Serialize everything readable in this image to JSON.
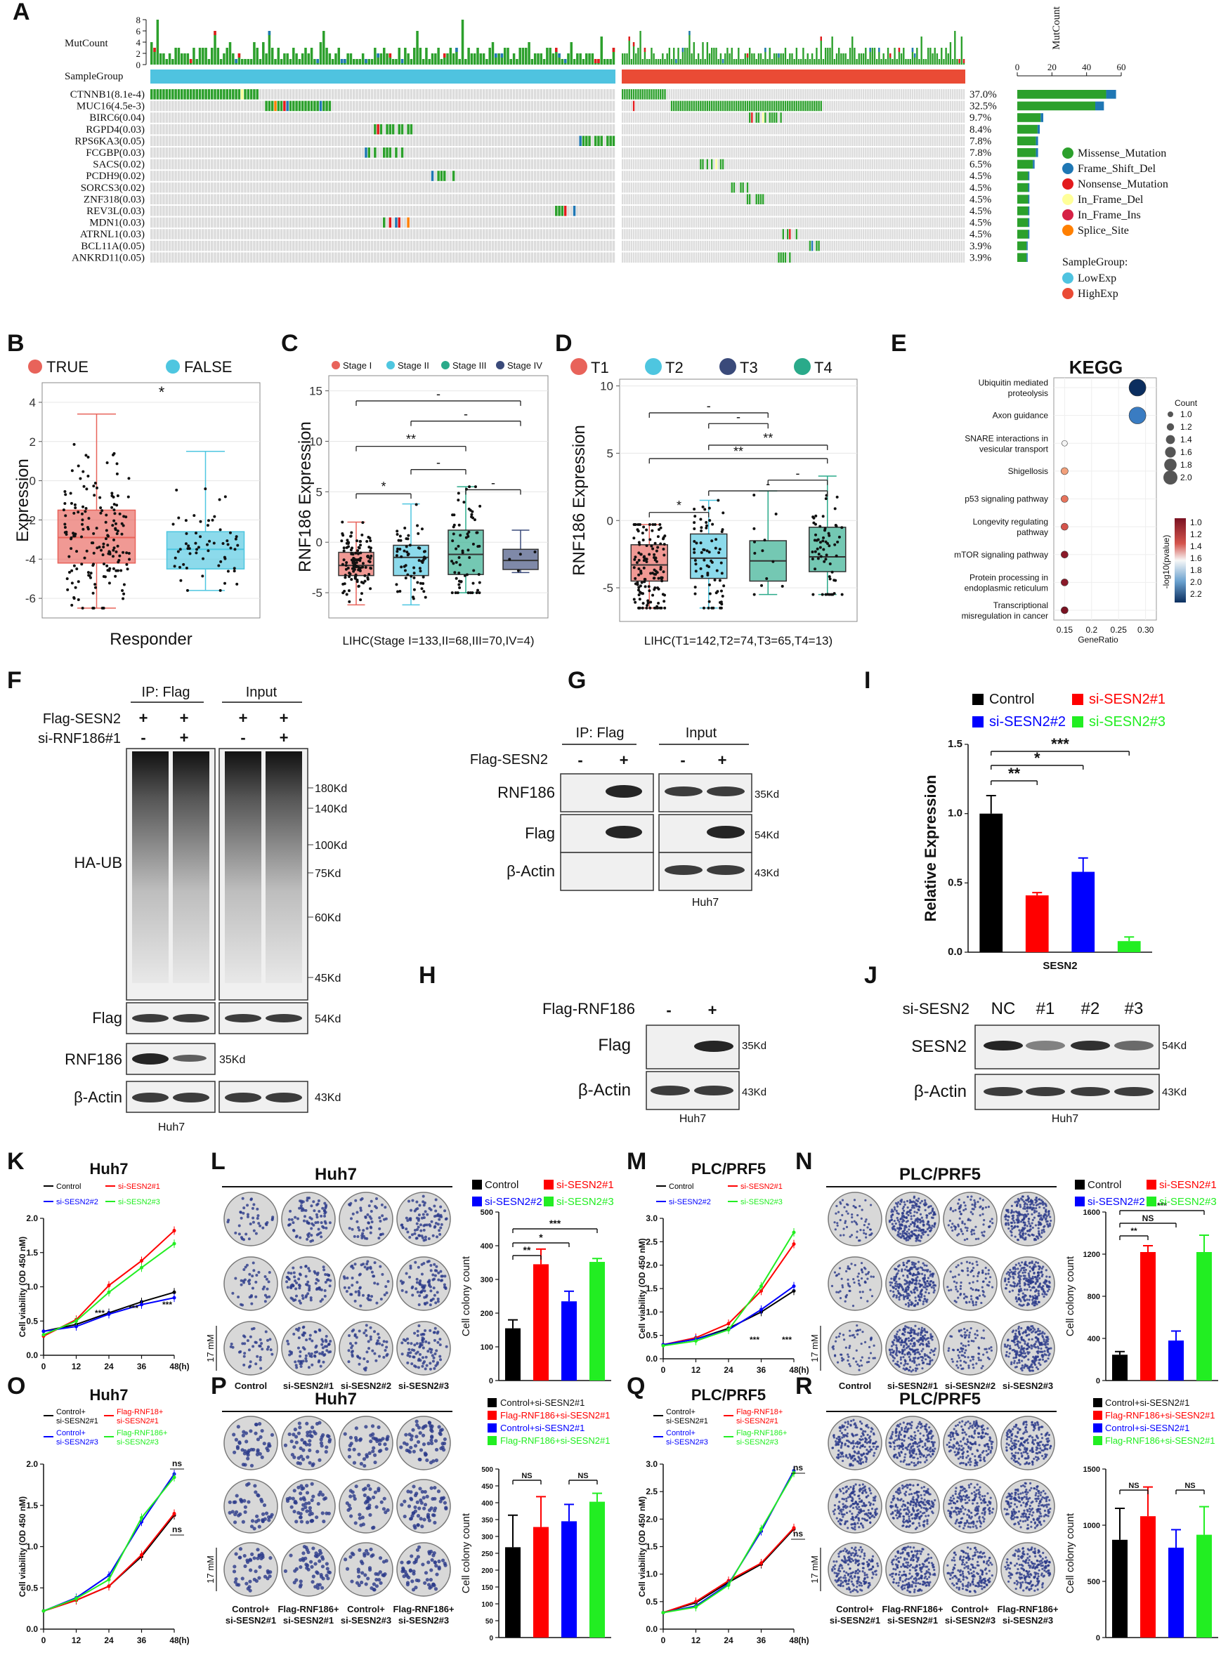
{
  "colors": {
    "missense": "#2ca02c",
    "frameshift": "#1f77b4",
    "nonsense": "#e31a1c",
    "inframe_del": "#ffff99",
    "inframe_ins": "#d62246",
    "splice": "#ff7f00",
    "lowexp": "#4fc3e0",
    "highexp": "#ea4b35",
    "gray_cell": "#dcdcdc",
    "control": "#000000",
    "si1": "#ff0000",
    "si2": "#0000ff",
    "si3": "#22ee22",
    "responder_true": "#e8635a",
    "responder_false": "#4ec6e0",
    "stage1": "#e8635a",
    "stage2": "#4ec6e0",
    "stage3": "#2aaa8a",
    "stage4": "#3a4a7a"
  },
  "panels": {
    "A": "A",
    "B": "B",
    "C": "C",
    "D": "D",
    "E": "E",
    "F": "F",
    "G": "G",
    "H": "H",
    "I": "I",
    "J": "J",
    "K": "K",
    "L": "L",
    "M": "M",
    "N": "N",
    "O": "O",
    "P": "P",
    "Q": "Q",
    "R": "R"
  },
  "panel_a": {
    "mutcount_label": "MutCount",
    "mutcount_ticks": [
      "8",
      "6",
      "4",
      "2",
      "0"
    ],
    "samplegroup_label": "SampleGroup",
    "side_axis_title": "MutCount",
    "side_axis_ticks": [
      "0",
      "20",
      "40",
      "60"
    ],
    "genes": [
      {
        "name": "CTNNB1(8.1e-4)",
        "pct": "37.0%",
        "count": 57
      },
      {
        "name": "MUC16(4.5e-3)",
        "pct": "32.5%",
        "count": 50
      },
      {
        "name": "BIRC6(0.04)",
        "pct": "9.7%",
        "count": 15
      },
      {
        "name": "RGPD4(0.03)",
        "pct": "8.4%",
        "count": 13
      },
      {
        "name": "RPS6KA3(0.05)",
        "pct": "7.8%",
        "count": 12
      },
      {
        "name": "FCGBP(0.03)",
        "pct": "7.8%",
        "count": 12
      },
      {
        "name": "SACS(0.02)",
        "pct": "6.5%",
        "count": 10
      },
      {
        "name": "PCDH9(0.02)",
        "pct": "4.5%",
        "count": 7
      },
      {
        "name": "SORCS3(0.02)",
        "pct": "4.5%",
        "count": 7
      },
      {
        "name": "ZNF318(0.03)",
        "pct": "4.5%",
        "count": 7
      },
      {
        "name": "REV3L(0.03)",
        "pct": "4.5%",
        "count": 7
      },
      {
        "name": "MDN1(0.03)",
        "pct": "4.5%",
        "count": 7
      },
      {
        "name": "ATRNL1(0.03)",
        "pct": "4.5%",
        "count": 7
      },
      {
        "name": "BCL11A(0.05)",
        "pct": "3.9%",
        "count": 6
      },
      {
        "name": "ANKRD11(0.05)",
        "pct": "3.9%",
        "count": 6
      }
    ],
    "legend": [
      {
        "label": "Missense_Mutation",
        "color": "#2ca02c"
      },
      {
        "label": "Frame_Shift_Del",
        "color": "#1f77b4"
      },
      {
        "label": "Nonsense_Mutation",
        "color": "#e31a1c"
      },
      {
        "label": "In_Frame_Del",
        "color": "#ffff99"
      },
      {
        "label": "In_Frame_Ins",
        "color": "#d62246"
      },
      {
        "label": "Splice_Site",
        "color": "#ff7f00"
      }
    ],
    "samplegroup_legend_title": "SampleGroup:",
    "samplegroup_legend": [
      {
        "label": "LowExp",
        "color": "#4fc3e0"
      },
      {
        "label": "HighExp",
        "color": "#ea4b35"
      }
    ]
  },
  "panel_b": {
    "legend": [
      {
        "label": "TRUE"
      },
      {
        "label": "FALSE"
      }
    ],
    "ylabel": "Expression",
    "xlabel": "Responder",
    "sig": "*",
    "yticks": [
      "4",
      "2",
      "0",
      "-2",
      "-4",
      "-6"
    ]
  },
  "panel_c": {
    "legend": [
      "Stage I",
      "Stage II",
      "Stage III",
      "Stage IV"
    ],
    "ylabel": "RNF186 Expression",
    "xlabel": "LIHC(Stage I=133,II=68,III=70,IV=4)",
    "yticks": [
      "15",
      "10",
      "5",
      "0",
      "-5"
    ],
    "sig": [
      "-",
      "-",
      "**",
      "-",
      "-",
      "*"
    ]
  },
  "panel_d": {
    "legend": [
      "T1",
      "T2",
      "T3",
      "T4"
    ],
    "ylabel": "RNF186 Expression",
    "xlabel": "LIHC(T1=142,T2=74,T3=65,T4=13)",
    "yticks": [
      "10",
      "5",
      "0",
      "-5"
    ],
    "sig": [
      "-",
      "-",
      "**",
      "**",
      "-",
      "*",
      "-"
    ]
  },
  "panel_e": {
    "title": "KEGG",
    "pathways": [
      "Ubiquitin mediated proteolysis",
      "Axon guidance",
      "SNARE interactions in vesicular transport",
      "Shigellosis",
      "p53 signaling pathway",
      "Longevity regulating pathway",
      "mTOR signaling pathway",
      "Protein processing in endoplasmic reticulum",
      "Transcriptional misregulation in cancer"
    ],
    "xlabel": "GeneRatio",
    "xticks": [
      "0.15",
      "0.2",
      "0.25",
      "0.30"
    ],
    "size_legend_title": "Count",
    "size_legend": [
      "1.0",
      "1.2",
      "1.4",
      "1.6",
      "1.8",
      "2.0"
    ],
    "color_legend_title": "-log10(pvalue)",
    "color_legend": [
      "1.0",
      "1.2",
      "1.4",
      "1.6",
      "1.8",
      "2.0",
      "2.2"
    ]
  },
  "panel_f": {
    "rows": [
      "Flag-SESN2",
      "si-RNF186#1"
    ],
    "signs": [
      [
        "+",
        "+",
        "+",
        "+"
      ],
      [
        "-",
        "+",
        "-",
        "+"
      ]
    ],
    "groups": [
      "IP: Flag",
      "Input"
    ],
    "blots": [
      "HA-UB",
      "Flag",
      "RNF186",
      "β-Actin"
    ],
    "markers": [
      "180Kd",
      "140Kd",
      "100Kd",
      "75Kd",
      "60Kd",
      "45Kd",
      "54Kd",
      "35Kd",
      "43Kd"
    ],
    "cell": "Huh7"
  },
  "panel_g": {
    "groups": [
      "IP: Flag",
      "Input"
    ],
    "row": "Flag-SESN2",
    "signs": [
      "-",
      "+",
      "-",
      "+"
    ],
    "blots": [
      "RNF186",
      "Flag",
      "β-Actin"
    ],
    "markers": [
      "35Kd",
      "54Kd",
      "43Kd"
    ],
    "cell": "Huh7"
  },
  "panel_h": {
    "row": "Flag-RNF186",
    "signs": [
      "-",
      "+"
    ],
    "blots": [
      "Flag",
      "β-Actin"
    ],
    "markers": [
      "35Kd",
      "43Kd"
    ],
    "cell": "Huh7"
  },
  "panel_j": {
    "row": "si-SESN2",
    "lanes": [
      "NC",
      "#1",
      "#2",
      "#3"
    ],
    "blots": [
      "SESN2",
      "β-Actin"
    ],
    "markers": [
      "54Kd",
      "43Kd"
    ],
    "cell": "Huh7"
  },
  "chart_data": [
    {
      "id": "I",
      "type": "bar",
      "categories": [
        "Control",
        "si-SESN2#1",
        "si-SESN2#2",
        "si-SESN2#3"
      ],
      "values": [
        1.0,
        0.41,
        0.58,
        0.08
      ],
      "errors": [
        0.13,
        0.02,
        0.1,
        0.03
      ],
      "xlabel": "SESN2",
      "ylabel": "Relative Expression",
      "ylim": [
        0,
        1.5
      ],
      "yticks": [
        "0.0",
        "0.5",
        "1.0",
        "1.5"
      ],
      "sig": [
        "**",
        "*",
        "***"
      ]
    },
    {
      "id": "K",
      "type": "line",
      "title": "Huh7",
      "x": [
        0,
        12,
        24,
        36,
        48
      ],
      "xticks": [
        "0",
        "12",
        "24",
        "36",
        "48"
      ],
      "xunit": "(h)",
      "ylabel": "Cell viability (OD 450 nM)",
      "ylim": [
        0,
        2.0
      ],
      "yticks": [
        "0.0",
        "0.5",
        "1.0",
        "1.5",
        "2.0"
      ],
      "series": [
        {
          "name": "Control",
          "values": [
            0.35,
            0.45,
            0.62,
            0.78,
            0.92
          ]
        },
        {
          "name": "si-SESN2#1",
          "values": [
            0.28,
            0.52,
            1.02,
            1.38,
            1.82
          ]
        },
        {
          "name": "si-SESN2#2",
          "values": [
            0.35,
            0.42,
            0.6,
            0.74,
            0.84
          ]
        },
        {
          "name": "si-SESN2#3",
          "values": [
            0.3,
            0.5,
            0.92,
            1.28,
            1.63
          ]
        }
      ],
      "sig": [
        "***",
        "***",
        "***"
      ]
    },
    {
      "id": "L",
      "type": "bar",
      "title": "Huh7",
      "categories": [
        "Control",
        "si-SESN2#1",
        "si-SESN2#2",
        "si-SESN2#3"
      ],
      "values": [
        155,
        345,
        235,
        352
      ],
      "errors": [
        25,
        45,
        30,
        10
      ],
      "ylabel": "Cell colony count",
      "ylim": [
        0,
        500
      ],
      "yticks": [
        "0",
        "100",
        "200",
        "300",
        "400",
        "500"
      ],
      "sig": [
        "**",
        "*",
        "***"
      ],
      "scale": "17 mM"
    },
    {
      "id": "M",
      "type": "line",
      "title": "PLC/PRF5",
      "x": [
        0,
        12,
        24,
        36,
        48
      ],
      "xticks": [
        "0",
        "12",
        "24",
        "36",
        "48"
      ],
      "xunit": "(h)",
      "ylabel": "Cell viability (OD 450 nM)",
      "ylim": [
        0,
        3.0
      ],
      "yticks": [
        "0.0",
        "0.5",
        "1.0",
        "1.5",
        "2.0",
        "2.5",
        "3.0"
      ],
      "series": [
        {
          "name": "Control",
          "values": [
            0.3,
            0.42,
            0.65,
            1.0,
            1.45
          ]
        },
        {
          "name": "si-SESN2#1",
          "values": [
            0.3,
            0.45,
            0.75,
            1.45,
            2.45
          ]
        },
        {
          "name": "si-SESN2#2",
          "values": [
            0.3,
            0.42,
            0.62,
            1.05,
            1.55
          ]
        },
        {
          "name": "si-SESN2#3",
          "values": [
            0.28,
            0.38,
            0.62,
            1.55,
            2.7
          ]
        }
      ],
      "sig": [
        "***",
        "***"
      ]
    },
    {
      "id": "N",
      "type": "bar",
      "title": "PLC/PRF5",
      "categories": [
        "Control",
        "si-SESN2#1",
        "si-SESN2#2",
        "si-SESN2#3"
      ],
      "values": [
        245,
        1220,
        380,
        1220
      ],
      "errors": [
        30,
        60,
        90,
        160
      ],
      "ylabel": "Cell colony count",
      "ylim": [
        0,
        1600
      ],
      "yticks": [
        "0",
        "400",
        "800",
        "1200",
        "1600"
      ],
      "sig": [
        "**",
        "NS",
        "***"
      ],
      "scale": "17 mM"
    },
    {
      "id": "O",
      "type": "line",
      "title": "Huh7",
      "x": [
        0,
        12,
        24,
        36,
        48
      ],
      "xticks": [
        "0",
        "12",
        "24",
        "36",
        "48"
      ],
      "xunit": "(h)",
      "ylabel": "Cell viability (OD 450 nM)",
      "ylim": [
        0,
        2.0
      ],
      "yticks": [
        "0.0",
        "0.5",
        "1.0",
        "1.5",
        "2.0"
      ],
      "series": [
        {
          "name": "Control+ si-SESN2#1",
          "values": [
            0.22,
            0.35,
            0.52,
            0.88,
            1.38
          ]
        },
        {
          "name": "Flag-RNF18+ si-SESN2#1",
          "values": [
            0.22,
            0.35,
            0.52,
            0.9,
            1.4
          ]
        },
        {
          "name": "Control+ si-SESN2#3",
          "values": [
            0.22,
            0.38,
            0.65,
            1.3,
            1.88
          ]
        },
        {
          "name": "Flag-RNF186+ si-SESN2#3",
          "values": [
            0.22,
            0.37,
            0.6,
            1.35,
            1.84
          ]
        }
      ],
      "sig": [
        "ns",
        "ns"
      ]
    },
    {
      "id": "P",
      "type": "bar",
      "title": "Huh7",
      "categories": [
        "Control+si-SESN2#1",
        "Flag-RNF186+si-SESN2#1",
        "Control+si-SESN2#1",
        "Flag-RNF186+si-SESN2#1"
      ],
      "values": [
        268,
        328,
        345,
        403
      ],
      "errors": [
        95,
        90,
        50,
        25
      ],
      "ylabel": "Cell colony count",
      "ylim": [
        0,
        500
      ],
      "yticks": [
        "0",
        "50",
        "100",
        "150",
        "200",
        "250",
        "300",
        "350",
        "400",
        "450",
        "500"
      ],
      "sig": [
        "NS",
        "NS"
      ],
      "scale": "17 mM",
      "plate_labels": [
        "Control+ si-SESN2#1",
        "Flag-RNF186+ si-SESN2#1",
        "Control+ si-SESN2#3",
        "Flag-RNF186+ si-SESN2#3"
      ]
    },
    {
      "id": "Q",
      "type": "line",
      "title": "PLC/PRF5",
      "x": [
        0,
        12,
        24,
        36,
        48
      ],
      "xticks": [
        "0",
        "12",
        "24",
        "36",
        "48"
      ],
      "xunit": "(h)",
      "ylabel": "Cell viability (OD 450 nM)",
      "ylim": [
        0,
        3.0
      ],
      "yticks": [
        "0.0",
        "0.5",
        "1.0",
        "1.5",
        "2.0",
        "2.5",
        "3.0"
      ],
      "series": [
        {
          "name": "Control+ si-SESN2#1",
          "values": [
            0.3,
            0.48,
            0.85,
            1.18,
            1.82
          ]
        },
        {
          "name": "Flag-RNF18+ si-SESN2#1",
          "values": [
            0.3,
            0.5,
            0.88,
            1.2,
            1.84
          ]
        },
        {
          "name": "Control+ si-SESN2#3",
          "values": [
            0.3,
            0.42,
            0.82,
            1.78,
            2.88
          ]
        },
        {
          "name": "Flag-RNF186+ si-SESN2#3",
          "values": [
            0.3,
            0.4,
            0.8,
            1.82,
            2.84
          ]
        }
      ],
      "sig": [
        "ns",
        "ns"
      ]
    },
    {
      "id": "R",
      "type": "bar",
      "title": "PLC/PRF5",
      "categories": [
        "Control+si-SESN2#1",
        "Flag-RNF186+si-SESN2#1",
        "Control+si-SESN2#1",
        "Flag-RNF186+si-SESN2#1"
      ],
      "values": [
        870,
        1080,
        800,
        915
      ],
      "errors": [
        280,
        260,
        160,
        250
      ],
      "ylabel": "Cell colony count",
      "ylim": [
        0,
        1500
      ],
      "yticks": [
        "0",
        "500",
        "1000",
        "1500"
      ],
      "sig": [
        "NS",
        "NS"
      ],
      "scale": "17 mM",
      "plate_labels": [
        "Control+ si-SESN2#1",
        "Flag-RNF186+ si-SESN2#1",
        "Control+ si-SESN2#3",
        "Flag-RNF186+ si-SESN2#3"
      ]
    }
  ]
}
